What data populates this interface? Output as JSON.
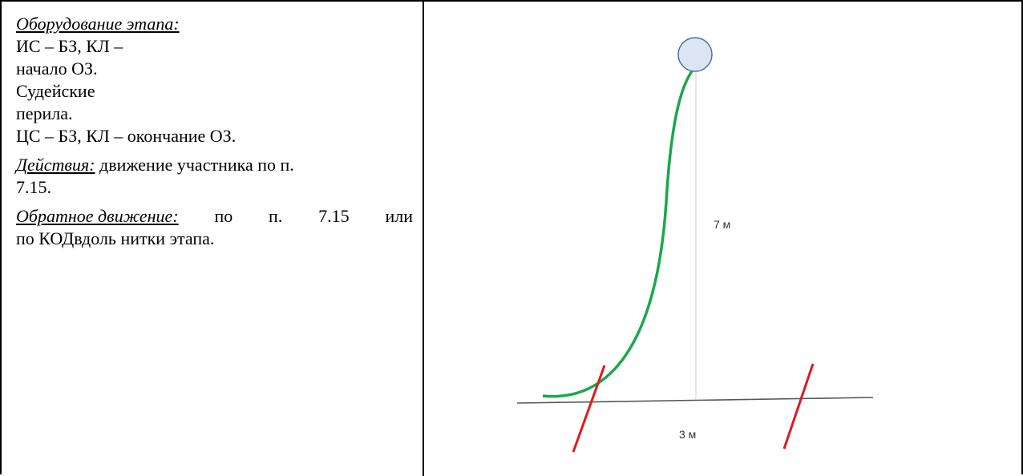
{
  "left": {
    "equipment_heading": "Оборудование этапа:",
    "equipment_lines": [
      "ИС – БЗ, КЛ –",
      "начало ОЗ.",
      "Судейские",
      "перила.",
      "ЦС – БЗ, КЛ – окончание ОЗ."
    ],
    "actions_heading": "Действия:",
    "actions_text_line1": "движение участника по п.",
    "actions_text_line2": "7.15.",
    "return_heading": "Обратное движение:",
    "return_text_line1_words": [
      "по",
      "п.",
      "7.15",
      "или"
    ],
    "return_text_line2": "по КОДвдоль нитки этапа."
  },
  "diagram": {
    "height_label": "7 м",
    "width_label": "3 м",
    "colors": {
      "circle_fill": "#dce6f2",
      "circle_stroke": "#4a6fa5",
      "rope": "#1aa84a",
      "limit_lines": "#e0191e",
      "ground": "#555555",
      "vertical_guide": "#cfcfcf"
    }
  }
}
